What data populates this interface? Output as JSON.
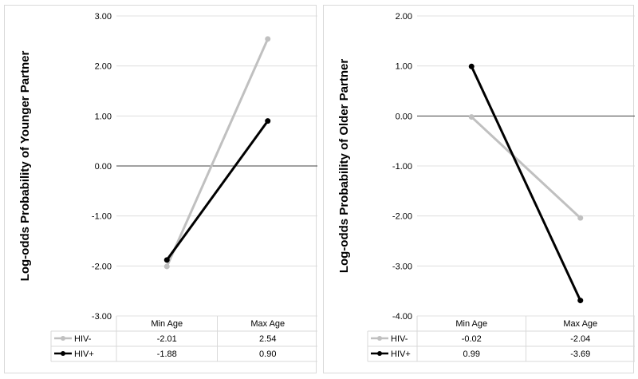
{
  "chart_data": [
    {
      "type": "line",
      "ylabel": "Log-odds Probability of Younger Partner",
      "ylim": [
        -3,
        3
      ],
      "yticks": [
        "3.00",
        "2.00",
        "1.00",
        "0.00",
        "-1.00",
        "-2.00",
        "-3.00"
      ],
      "categories": [
        "Min Age",
        "Max Age"
      ],
      "series": [
        {
          "name": "HIV-",
          "values": [
            -2.01,
            2.54
          ],
          "display": [
            "-2.01",
            "2.54"
          ],
          "color": "#c0c0c0"
        },
        {
          "name": "HIV+",
          "values": [
            -1.88,
            0.9
          ],
          "display": [
            "-1.88",
            "0.90"
          ],
          "color": "#000000"
        }
      ],
      "grid": true,
      "legend": "data-table"
    },
    {
      "type": "line",
      "ylabel": "Log-odds Probability of Older Partner",
      "ylim": [
        -4,
        2
      ],
      "yticks": [
        "2.00",
        "1.00",
        "0.00",
        "-1.00",
        "-2.00",
        "-3.00",
        "-4.00"
      ],
      "categories": [
        "Min Age",
        "Max Age"
      ],
      "series": [
        {
          "name": "HIV-",
          "values": [
            -0.02,
            -2.04
          ],
          "display": [
            "-0.02",
            "-2.04"
          ],
          "color": "#c0c0c0"
        },
        {
          "name": "HIV+",
          "values": [
            0.99,
            -3.69
          ],
          "display": [
            "0.99",
            "-3.69"
          ],
          "color": "#000000"
        }
      ],
      "grid": true,
      "legend": "data-table"
    }
  ]
}
